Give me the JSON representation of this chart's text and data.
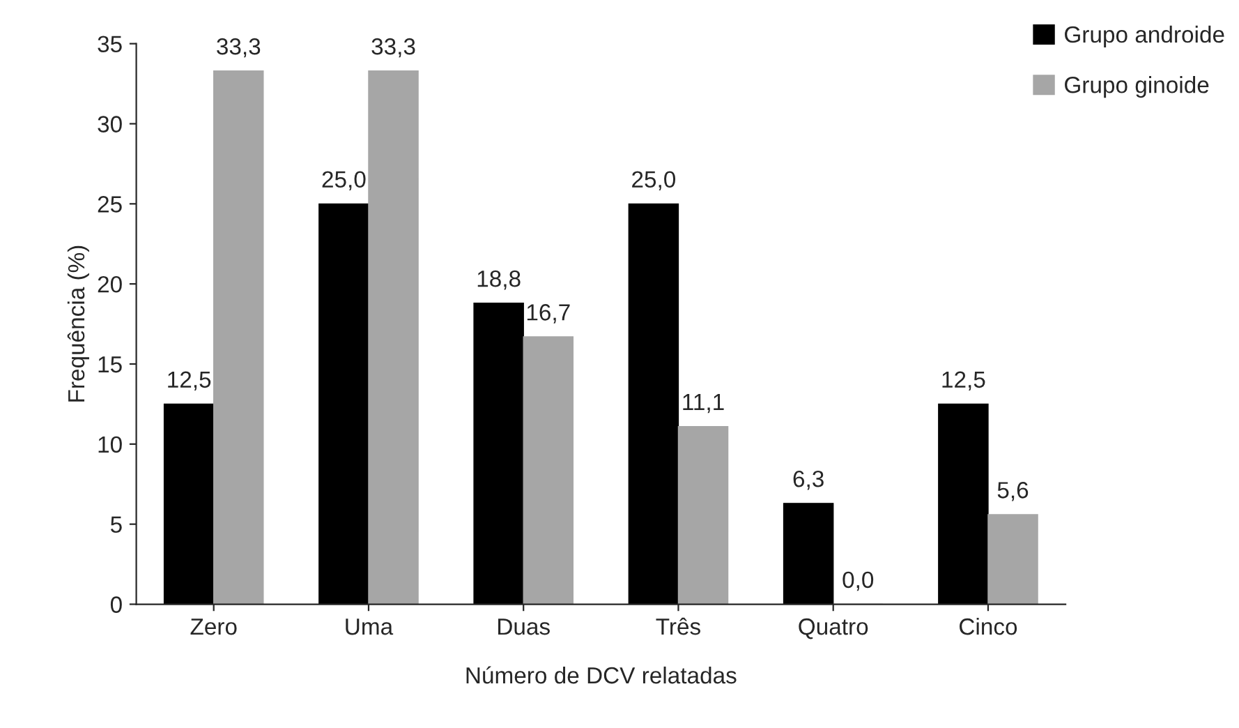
{
  "chart_data": {
    "type": "bar",
    "xlabel": "Número de DCV relatadas",
    "ylabel": "Frequência (%)",
    "categories": [
      "Zero",
      "Uma",
      "Duas",
      "Três",
      "Quatro",
      "Cinco"
    ],
    "series": [
      {
        "name": "Grupo androide",
        "color": "#000000",
        "values": [
          12.5,
          25.0,
          18.8,
          25.0,
          6.3,
          12.5
        ],
        "value_labels": [
          "12,5",
          "25,0",
          "18,8",
          "25,0",
          "6,3",
          "12,5"
        ]
      },
      {
        "name": "Grupo ginoide",
        "color": "#a6a6a6",
        "values": [
          33.3,
          33.3,
          16.7,
          11.1,
          0.0,
          5.6
        ],
        "value_labels": [
          "33,3",
          "33,3",
          "16,7",
          "11,1",
          "0,0",
          "5,6"
        ]
      }
    ],
    "ylim": [
      0,
      35
    ],
    "yticks": [
      0,
      5,
      10,
      15,
      20,
      25,
      30,
      35
    ],
    "grid": false,
    "legend": "top right"
  }
}
